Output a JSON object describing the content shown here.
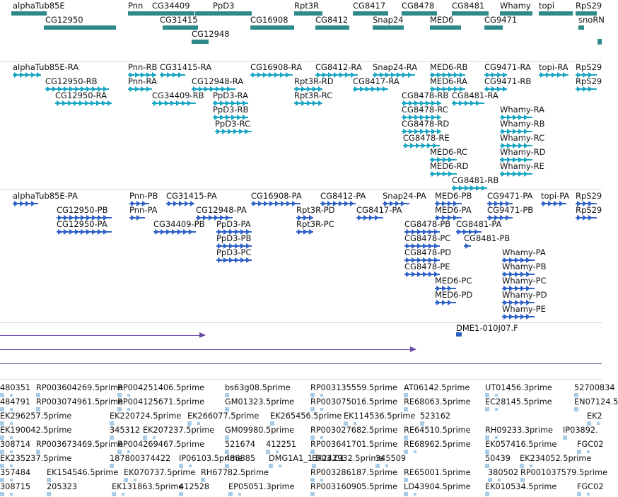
{
  "colors": {
    "gene": "#2e8a8a",
    "transcript": "#18a6c3",
    "protein": "#2f62c8",
    "alignment": "#6a4aa8",
    "est": "#a8cbe6"
  },
  "genes": [
    "alphaTub85E",
    "CG12950",
    "Pnn",
    "CG34409",
    "CG31415",
    "CG12948",
    "PpD3",
    "CG16908",
    "Rpt3R",
    "CG8412",
    "CG8417",
    "Snap24",
    "CG8478",
    "MED6",
    "CG8481",
    "CG9471",
    "Whamy",
    "topi",
    "RpS29",
    "snoRN"
  ],
  "transcripts": [
    "alphaTub85E-RA",
    "CG12950-RB",
    "CG12950-RA",
    "Pnn-RB",
    "Pnn-RA",
    "CG31415-RA",
    "CG34409-RB",
    "CG12948-RA",
    "PpD3-RA",
    "PpD3-RB",
    "PpD3-RC",
    "CG16908-RA",
    "CG8412-RA",
    "Rpt3R-RD",
    "Rpt3R-RC",
    "CG8417-RA",
    "Snap24-RA",
    "MED6-RB",
    "MED6-RA",
    "CG8478-RB",
    "CG8481-RA",
    "CG8478-RC",
    "CG8478-RD",
    "CG8478-RE",
    "MED6-RC",
    "MED6-RD",
    "CG8481-RB",
    "CG9471-RA",
    "CG9471-RB",
    "topi-RA",
    "RpS29",
    "RpS29",
    "Whamy-RA",
    "Whamy-RB",
    "Whamy-RC",
    "Whamy-RD",
    "Whamy-RE"
  ],
  "proteins": [
    "alphaTub85E-PA",
    "CG12950-PB",
    "CG12950-PA",
    "Pnn-PB",
    "Pnn-PA",
    "CG31415-PA",
    "CG34409-PB",
    "CG12948-PA",
    "PpD3-PA",
    "PpD3-PB",
    "PpD3-PC",
    "CG16908-PA",
    "CG8412-PA",
    "Rpt3R-PD",
    "Rpt3R-PC",
    "CG8417-PA",
    "Snap24-PA",
    "MED6-PB",
    "MED6-PA",
    "CG8478-PB",
    "CG8481-PA",
    "CG8478-PC",
    "CG8481-PB",
    "CG8478-PD",
    "CG8478-PE",
    "MED6-PC",
    "MED6-PD",
    "CG9471-PA",
    "CG9471-PB",
    "topi-PA",
    "RpS29",
    "RpS29",
    "Whamy-PA",
    "Whamy-PB",
    "Whamy-PC",
    "Whamy-PD",
    "Whamy-PE"
  ],
  "alignment": {
    "label": "DME1-010J07.F"
  },
  "ests": [
    [
      "480351",
      "RP003604269.5prime",
      "RP004251406.5prime",
      "bs63g08.5prime",
      "RP003135559.5prime",
      "AT06142.5prime",
      "UT01456.3prime",
      "52700834"
    ],
    [
      "484791",
      "RP003074961.5prime",
      "RP004125671.5prime",
      "GM01323.5prime",
      "RP003075016.5prime",
      "RE68063.5prime",
      "EC28145.5prime",
      "EN07124.5"
    ],
    [
      "EK296257.5prime",
      "EK220724.5prime",
      "EK266077.5prime",
      "EK265456.5prime",
      "EK114536.5prime",
      "523162",
      "EK2"
    ],
    [
      "EK190042.5prime",
      "345312",
      "EK207237.5prime",
      "GM09980.5prime",
      "RP003027682.5prime",
      "RE64510.5prime",
      "RH09233.3prime",
      "IP03892."
    ],
    [
      "308714",
      "RP003673469.5prime",
      "RP004269467.5prime",
      "521674",
      "412251",
      "RP003641701.5prime",
      "RE68962.5prime",
      "EK057416.5prime",
      "FGC02"
    ],
    [
      "EK235237.5prime",
      "187800374422",
      "IP06103.5prime",
      "488885",
      "DMG1A1_1.D03.C1",
      "EK242932.5prime",
      "345509",
      "50439",
      "EK234052.5prime"
    ],
    [
      "357484",
      "EK154546.5prime",
      "EK070737.5prime",
      "RH67782.5prime",
      "RP003286187.5prime",
      "RE65001.5prime",
      "380502",
      "RP001037579.5prime"
    ],
    [
      "308715",
      "205323",
      "EK131863.5prime",
      "412528",
      "EP05051.3prime",
      "RP003160905.5prime",
      "LD43904.5prime",
      "EK010534.5prime",
      "FGC02"
    ]
  ]
}
